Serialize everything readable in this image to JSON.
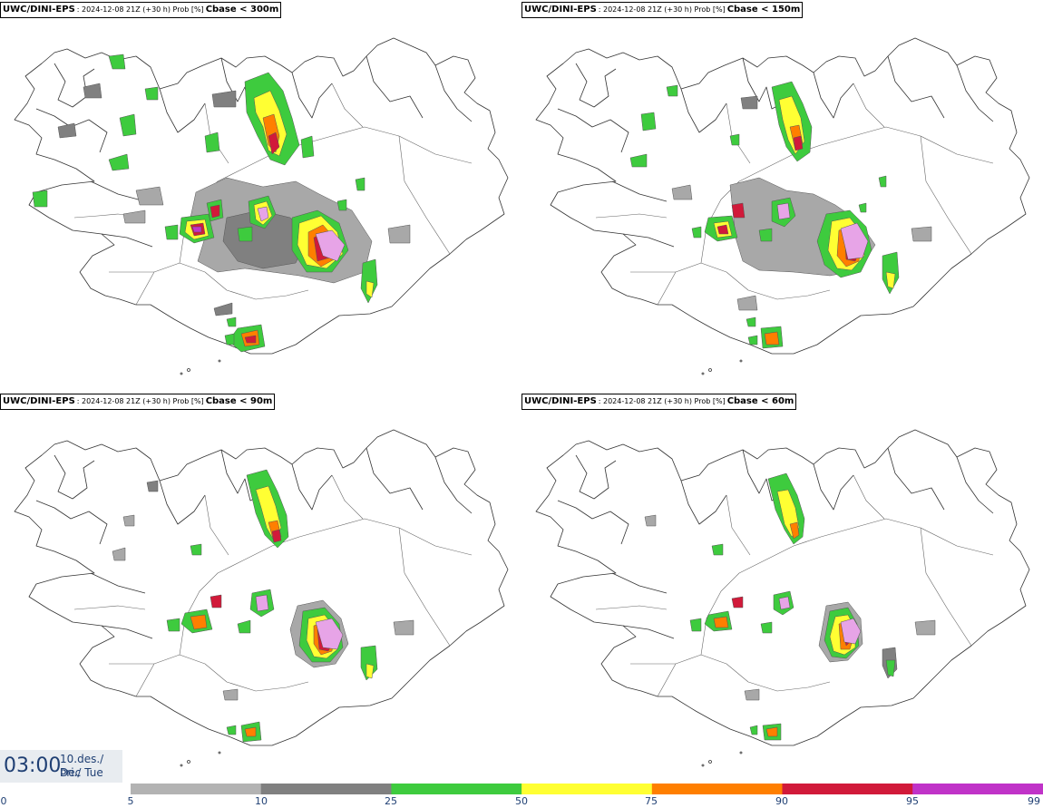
{
  "panels": [
    {
      "source": "UWC/DINI-EPS",
      "meta": ": 2024-12-08 21Z (+30 h) Prob [%]",
      "threshold": "Cbase < 300m"
    },
    {
      "source": "UWC/DINI-EPS",
      "meta": ": 2024-12-08 21Z (+30 h) Prob [%]",
      "threshold": "Cbase < 150m"
    },
    {
      "source": "UWC/DINI-EPS",
      "meta": ": 2024-12-08 21Z (+30 h) Prob [%]",
      "threshold": "Cbase < 90m"
    },
    {
      "source": "UWC/DINI-EPS",
      "meta": ": 2024-12-08 21Z (+30 h) Prob [%]",
      "threshold": "Cbase < 60m"
    }
  ],
  "valid_time": {
    "clock": "03:00",
    "date_line1": "10.des./ Dec",
    "date_line2": "Þri./ Tue"
  },
  "colorbar": {
    "ticks": [
      "0",
      "5",
      "10",
      "25",
      "50",
      "75",
      "90",
      "95",
      "99"
    ],
    "bins": [
      {
        "from": 5,
        "to": 10,
        "color": "#b3b3b3"
      },
      {
        "from": 10,
        "to": 25,
        "color": "#808080"
      },
      {
        "from": 25,
        "to": 50,
        "color": "#3ecb3e"
      },
      {
        "from": 50,
        "to": 75,
        "color": "#ffff33"
      },
      {
        "from": 75,
        "to": 90,
        "color": "#ff7f00"
      },
      {
        "from": 90,
        "to": 95,
        "color": "#d11a3a"
      },
      {
        "from": 95,
        "to": 99,
        "color": "#c033c8"
      }
    ],
    "top_gradient": [
      "#c033c8",
      "#f5c8f5"
    ]
  }
}
